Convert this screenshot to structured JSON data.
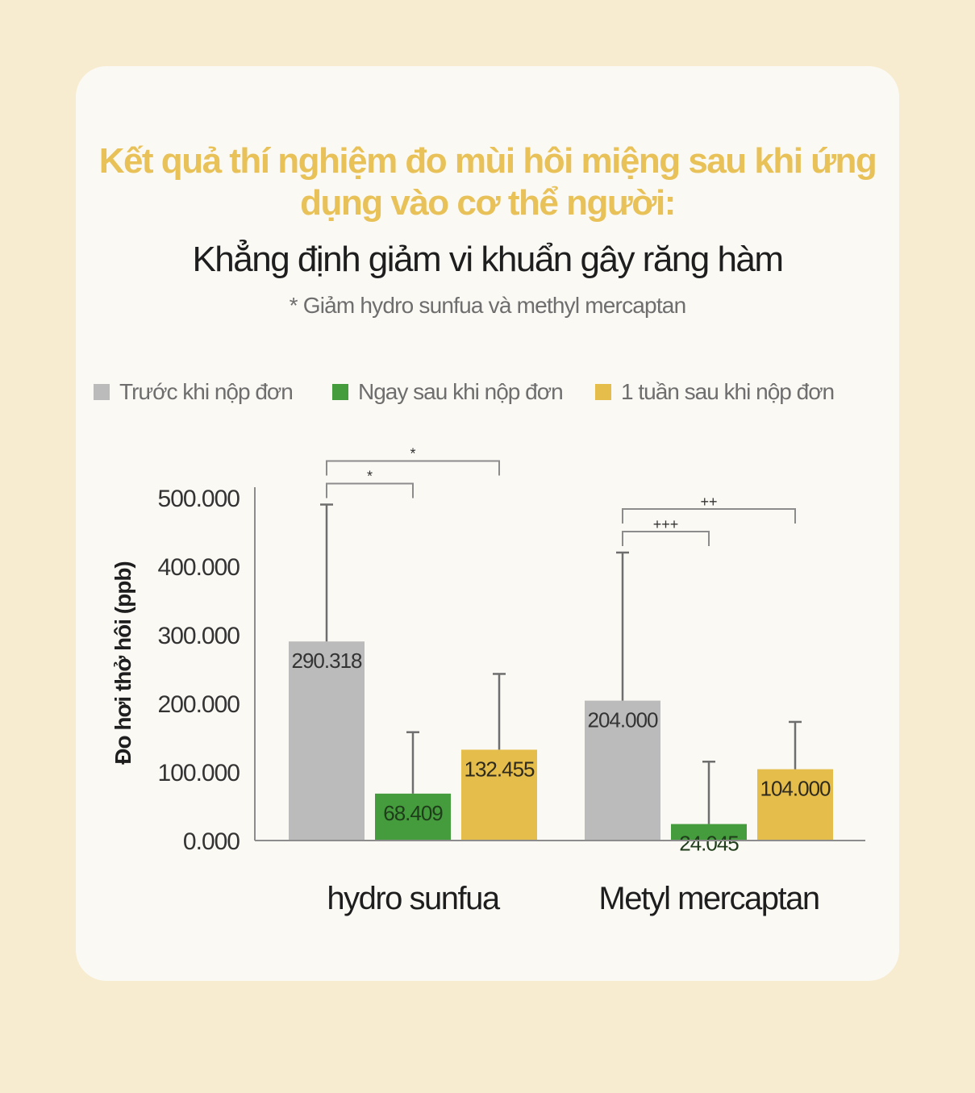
{
  "title_line1": "Kết quả thí nghiệm đo mùi hôi miệng sau khi ứng",
  "title_line2": "dụng vào cơ thể người:",
  "subtitle": "Khẳng định giảm vi khuẩn gây răng hàm",
  "note": "* Giảm hydro sunfua và methyl mercaptan",
  "colors": {
    "background": "#f7ecd0",
    "card": "#fbf9f4",
    "title": "#e8c158",
    "before": "#bbbbbb",
    "immediately": "#449c3d",
    "one_week": "#e4bd4a",
    "axis": "#8c8c8c"
  },
  "chart_data": {
    "type": "bar",
    "categories": [
      "hydro sunfua",
      "Metyl mercaptan"
    ],
    "ylabel": "Đo hơi thở hôi (ppb)",
    "ylim": [
      0,
      500000
    ],
    "yticks": [
      0,
      100000,
      200000,
      300000,
      400000,
      500000
    ],
    "ytick_labels": [
      "0.000",
      "100.000",
      "200.000",
      "300.000",
      "400.000",
      "500.000"
    ],
    "legend_position": "top",
    "grid": false,
    "series": [
      {
        "name": "Trước khi nộp đơn",
        "color": "#bbbbbb",
        "values": [
          290318,
          204000
        ],
        "labels": [
          "290.318",
          "204.000"
        ],
        "error_upper": [
          490000,
          420000
        ]
      },
      {
        "name": "Ngay sau khi nộp đơn",
        "color": "#449c3d",
        "values": [
          68409,
          24045
        ],
        "labels": [
          "68.409",
          "24.045"
        ],
        "error_upper": [
          158000,
          115000
        ]
      },
      {
        "name": "1 tuần sau khi nộp đơn",
        "color": "#e4bd4a",
        "values": [
          132455,
          104000
        ],
        "labels": [
          "132.455",
          "104.000"
        ],
        "error_upper": [
          243000,
          173000
        ]
      }
    ],
    "significance": [
      {
        "category": 0,
        "from": 0,
        "to": 1,
        "label": "*",
        "level": 0
      },
      {
        "category": 0,
        "from": 0,
        "to": 2,
        "label": "*",
        "level": 1
      },
      {
        "category": 1,
        "from": 0,
        "to": 1,
        "label": "+++",
        "level": 0
      },
      {
        "category": 1,
        "from": 0,
        "to": 2,
        "label": "++",
        "level": 1
      }
    ]
  }
}
